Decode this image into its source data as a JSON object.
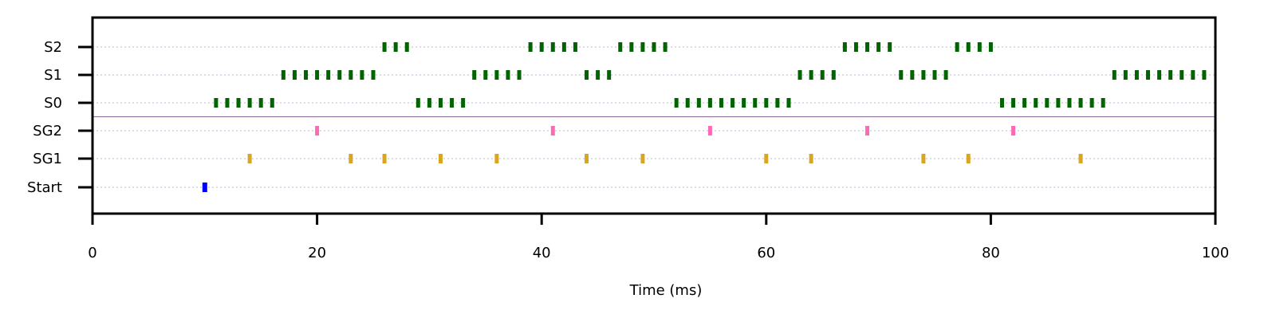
{
  "chart_data": {
    "type": "scatter",
    "title": "",
    "xlabel": "Time (ms)",
    "ylabel": "",
    "xlim": [
      0,
      100
    ],
    "xticks": [
      0,
      20,
      40,
      60,
      80,
      100
    ],
    "rows": [
      "Start",
      "SG1",
      "SG2",
      "S0",
      "S1",
      "S2"
    ],
    "grid": "dotted horizontal lines at each row",
    "separator": "horizontal line between SG2 and S0",
    "series": [
      {
        "row": "Start",
        "color": "#0000ff",
        "x": [
          10
        ]
      },
      {
        "row": "SG1",
        "color": "#daa520",
        "x": [
          14,
          23,
          26,
          31,
          36,
          44,
          49,
          60,
          64,
          74,
          78,
          88
        ]
      },
      {
        "row": "SG2",
        "color": "#ff69b4",
        "x": [
          20,
          41,
          55,
          69,
          82
        ]
      },
      {
        "row": "S0",
        "color": "#006400",
        "x": [
          11,
          12,
          13,
          14,
          15,
          16,
          29,
          30,
          31,
          32,
          33,
          52,
          53,
          54,
          55,
          56,
          57,
          58,
          59,
          60,
          61,
          62,
          81,
          82,
          83,
          84,
          85,
          86,
          87,
          88,
          89,
          90
        ]
      },
      {
        "row": "S1",
        "color": "#006400",
        "x": [
          17,
          18,
          19,
          20,
          21,
          22,
          23,
          24,
          25,
          34,
          35,
          36,
          37,
          38,
          44,
          45,
          46,
          63,
          64,
          65,
          66,
          72,
          73,
          74,
          75,
          76,
          91,
          92,
          93,
          94,
          95,
          96,
          97,
          98,
          99
        ]
      },
      {
        "row": "S2",
        "color": "#006400",
        "x": [
          26,
          27,
          28,
          39,
          40,
          41,
          42,
          43,
          47,
          48,
          49,
          50,
          51,
          67,
          68,
          69,
          70,
          71,
          77,
          78,
          79,
          80
        ]
      }
    ]
  }
}
